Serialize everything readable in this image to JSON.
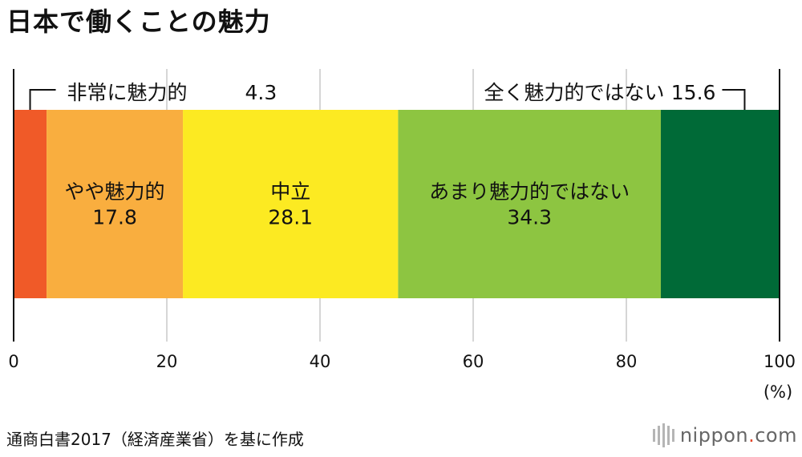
{
  "title": "日本で働くことの魅力",
  "source": "通商白書2017（経済産業省）を基に作成",
  "logo": {
    "name": "nippon",
    "dot": ".",
    "tld": "com"
  },
  "colors": {
    "very_attractive": "#f05a28",
    "somewhat_attractive": "#f9ae3f",
    "neutral": "#fcea22",
    "not_very_attractive": "#8dc541",
    "not_at_all_attractive": "#006a37",
    "grid": "#c8c8c8",
    "axis": "#111111"
  },
  "chart_data": {
    "type": "bar",
    "orientation": "horizontal",
    "stacked": true,
    "title": "日本で働くことの魅力",
    "unit_label": "(%)",
    "xlim": [
      0,
      100
    ],
    "x_ticks": [
      0,
      20,
      40,
      60,
      80,
      100
    ],
    "grid": true,
    "series": [
      {
        "name": "非常に魅力的",
        "value": 4.3,
        "label_position": "outside-left"
      },
      {
        "name": "やや魅力的",
        "value": 17.8,
        "label_position": "inside"
      },
      {
        "name": "中立",
        "value": 28.1,
        "label_position": "inside"
      },
      {
        "name": "あまり魅力的ではない",
        "value": 34.3,
        "label_position": "inside"
      },
      {
        "name": "全く魅力的ではない",
        "value": 15.6,
        "label_position": "outside-right"
      }
    ]
  }
}
